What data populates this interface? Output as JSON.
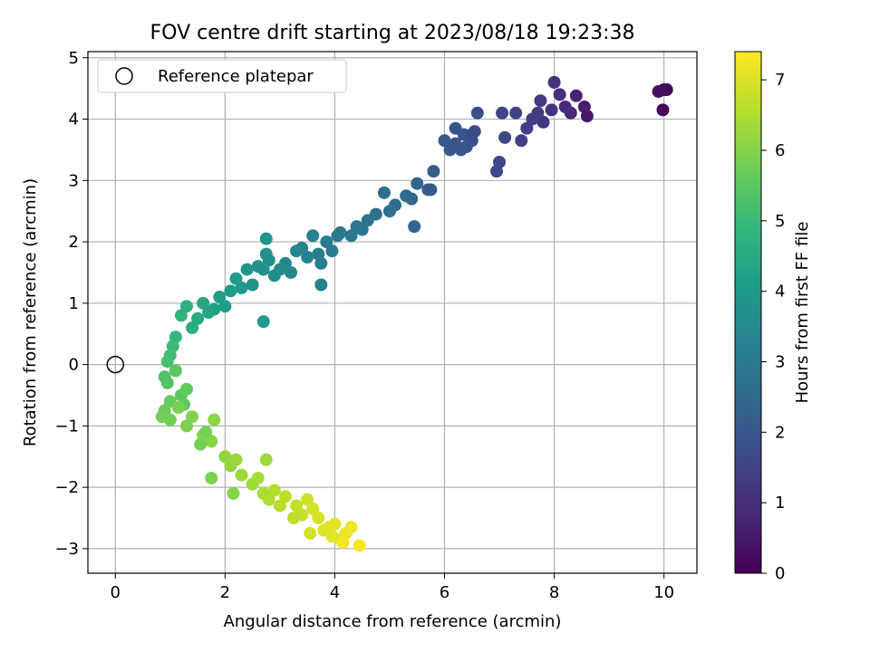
{
  "chart_data": {
    "type": "scatter",
    "title": "FOV centre drift starting at 2023/08/18 19:23:38",
    "xlabel": "Angular distance from reference (arcmin)",
    "ylabel": "Rotation from reference (arcmin)",
    "xlim": [
      -0.5,
      10.6
    ],
    "ylim": [
      -3.4,
      5.1
    ],
    "xticks": [
      0,
      2,
      4,
      6,
      8,
      10
    ],
    "yticks": [
      -3,
      -2,
      -1,
      0,
      1,
      2,
      3,
      4,
      5
    ],
    "grid": true,
    "legend": {
      "position": "top-left",
      "entries": [
        "Reference platepar"
      ]
    },
    "reference_point": {
      "x": 0,
      "y": 0,
      "label": "Reference platepar"
    },
    "colorbar": {
      "label": "Hours from first FF file",
      "min": 0,
      "max": 7.4,
      "ticks": [
        0,
        1,
        2,
        3,
        4,
        5,
        6,
        7
      ],
      "colormap": "viridis"
    },
    "points": {
      "x": [
        10.05,
        10.0,
        9.98,
        9.9,
        8.6,
        8.55,
        8.4,
        8.3,
        8.2,
        8.1,
        8.0,
        7.95,
        7.8,
        7.75,
        7.7,
        7.6,
        7.5,
        7.4,
        7.3,
        7.1,
        7.0,
        6.95,
        7.05,
        6.6,
        6.55,
        6.5,
        6.4,
        6.3,
        6.2,
        6.1,
        6.0,
        6.2,
        6.35,
        5.8,
        5.7,
        5.5,
        5.4,
        5.3,
        5.1,
        5.0,
        4.9,
        4.75,
        4.6,
        4.5,
        4.4,
        4.3,
        4.1,
        3.95,
        3.85,
        3.75,
        3.7,
        3.6,
        3.5,
        3.4,
        3.3,
        3.2,
        3.1,
        3.0,
        2.9,
        2.8,
        2.75,
        2.7,
        2.6,
        2.5,
        2.4,
        2.3,
        2.2,
        2.1,
        2.0,
        1.9,
        1.8,
        1.7,
        1.6,
        1.5,
        1.4,
        1.3,
        1.2,
        1.1,
        1.05,
        1.0,
        0.95,
        0.9,
        0.95,
        1.1,
        1.2,
        1.25,
        1.3,
        1.0,
        0.9,
        0.85,
        1.0,
        1.15,
        1.3,
        1.4,
        1.6,
        1.75,
        1.8,
        2.0,
        2.1,
        2.2,
        2.3,
        2.5,
        2.6,
        2.7,
        2.8,
        2.9,
        3.0,
        3.1,
        3.3,
        3.4,
        3.5,
        3.6,
        3.7,
        3.8,
        3.9,
        4.0,
        4.1,
        4.2,
        4.3,
        4.45,
        4.15,
        3.95,
        3.55,
        3.25,
        2.75,
        2.15,
        1.75,
        1.55,
        1.65,
        2.7,
        2.75,
        3.75,
        4.05,
        5.45,
        5.75,
        6.5
      ],
      "y": [
        4.48,
        4.48,
        4.15,
        4.45,
        4.05,
        4.2,
        4.38,
        4.1,
        4.2,
        4.4,
        4.6,
        4.15,
        3.95,
        4.3,
        4.1,
        4.0,
        3.85,
        3.65,
        4.1,
        3.7,
        3.3,
        3.15,
        4.1,
        4.1,
        3.8,
        3.65,
        3.55,
        3.5,
        3.85,
        3.5,
        3.65,
        3.6,
        3.75,
        3.15,
        2.85,
        2.95,
        2.7,
        2.75,
        2.6,
        2.5,
        2.8,
        2.45,
        2.35,
        2.2,
        2.25,
        2.1,
        2.15,
        1.85,
        2.0,
        1.65,
        1.8,
        2.1,
        1.75,
        1.9,
        1.85,
        1.5,
        1.65,
        1.55,
        1.45,
        1.7,
        1.8,
        1.55,
        1.6,
        1.3,
        1.55,
        1.25,
        1.4,
        1.2,
        0.95,
        1.1,
        0.9,
        0.85,
        1.0,
        0.75,
        0.6,
        0.95,
        0.8,
        0.45,
        0.3,
        0.15,
        0.05,
        -0.2,
        -0.3,
        -0.1,
        -0.5,
        -0.65,
        -0.4,
        -0.6,
        -0.75,
        -0.85,
        -0.9,
        -0.7,
        -1.0,
        -0.85,
        -1.15,
        -1.25,
        -0.9,
        -1.5,
        -1.65,
        -1.55,
        -1.8,
        -1.95,
        -1.85,
        -2.1,
        -2.2,
        -2.05,
        -2.3,
        -2.15,
        -2.3,
        -2.45,
        -2.2,
        -2.35,
        -2.5,
        -2.7,
        -2.65,
        -2.6,
        -2.85,
        -2.75,
        -2.65,
        -2.95,
        -2.9,
        -2.8,
        -2.75,
        -2.5,
        -1.55,
        -2.1,
        -1.85,
        -1.3,
        -1.1,
        0.7,
        2.05,
        1.3,
        2.1,
        2.25,
        2.85,
        3.75
      ]
    },
    "point_hours": [
      0.05,
      0.1,
      0.15,
      0.3,
      0.5,
      0.6,
      0.7,
      0.8,
      0.9,
      1.0,
      1.05,
      1.1,
      1.2,
      1.25,
      1.3,
      1.35,
      1.4,
      1.45,
      1.5,
      1.55,
      1.6,
      1.65,
      1.5,
      1.75,
      1.8,
      1.85,
      1.9,
      1.95,
      2.0,
      2.05,
      2.1,
      2.0,
      1.9,
      2.2,
      2.3,
      2.4,
      2.5,
      2.55,
      2.6,
      2.65,
      2.7,
      2.75,
      2.8,
      2.85,
      2.9,
      2.95,
      3.0,
      3.05,
      3.1,
      3.15,
      3.2,
      3.25,
      3.3,
      3.35,
      3.4,
      3.45,
      3.5,
      3.55,
      3.6,
      3.65,
      3.7,
      3.75,
      3.8,
      3.85,
      3.9,
      3.95,
      4.0,
      4.05,
      4.1,
      4.15,
      4.2,
      4.3,
      4.4,
      4.5,
      4.6,
      4.7,
      4.8,
      4.9,
      5.0,
      5.1,
      5.2,
      5.3,
      5.4,
      5.45,
      5.5,
      5.55,
      5.6,
      5.65,
      5.7,
      5.75,
      5.8,
      5.85,
      5.9,
      5.95,
      6.0,
      6.05,
      6.1,
      6.15,
      6.2,
      6.25,
      6.3,
      6.35,
      6.4,
      6.45,
      6.5,
      6.55,
      6.6,
      6.65,
      6.7,
      6.8,
      6.85,
      6.9,
      6.95,
      7.0,
      7.05,
      7.1,
      7.15,
      7.2,
      7.25,
      7.35,
      7.3,
      7.1,
      6.9,
      6.7,
      6.3,
      6.0,
      5.9,
      5.8,
      5.85,
      4.0,
      3.8,
      3.3,
      3.0,
      2.4,
      2.1,
      1.7
    ]
  }
}
